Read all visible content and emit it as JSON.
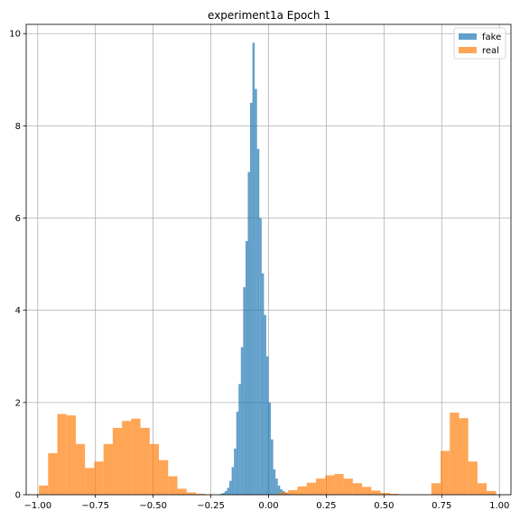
{
  "chart_data": {
    "type": "histogram",
    "title": "experiment1a Epoch 1",
    "xlabel": "",
    "ylabel": "",
    "xlim": [
      -1.05,
      1.05
    ],
    "ylim": [
      0,
      10.2
    ],
    "grid": true,
    "legend_position": "top-right",
    "xticks": [
      -1.0,
      -0.75,
      -0.5,
      -0.25,
      0.0,
      0.25,
      0.5,
      0.75,
      1.0
    ],
    "xtick_labels": [
      "−1.00",
      "−0.75",
      "−0.50",
      "−0.25",
      "0.00",
      "0.25",
      "0.50",
      "0.75",
      "1.00"
    ],
    "yticks": [
      0,
      2,
      4,
      6,
      8,
      10
    ],
    "ytick_labels": [
      "0",
      "2",
      "4",
      "6",
      "8",
      "10"
    ],
    "series": [
      {
        "name": "fake",
        "color": "#1f77b4",
        "alpha": 0.7,
        "bin_width": 0.01,
        "bins": [
          [
            -0.205,
            0.02
          ],
          [
            -0.195,
            0.04
          ],
          [
            -0.185,
            0.08
          ],
          [
            -0.175,
            0.15
          ],
          [
            -0.165,
            0.3
          ],
          [
            -0.155,
            0.6
          ],
          [
            -0.145,
            1.0
          ],
          [
            -0.135,
            1.8
          ],
          [
            -0.125,
            2.4
          ],
          [
            -0.115,
            3.2
          ],
          [
            -0.105,
            4.5
          ],
          [
            -0.095,
            5.5
          ],
          [
            -0.085,
            7.0
          ],
          [
            -0.075,
            8.5
          ],
          [
            -0.065,
            9.8
          ],
          [
            -0.055,
            8.8
          ],
          [
            -0.045,
            7.5
          ],
          [
            -0.035,
            6.0
          ],
          [
            -0.025,
            4.8
          ],
          [
            -0.015,
            3.9
          ],
          [
            -0.005,
            3.0
          ],
          [
            0.005,
            2.0
          ],
          [
            0.015,
            1.2
          ],
          [
            0.025,
            0.55
          ],
          [
            0.035,
            0.35
          ],
          [
            0.045,
            0.2
          ],
          [
            0.055,
            0.12
          ],
          [
            0.065,
            0.08
          ],
          [
            0.075,
            0.04
          ],
          [
            0.085,
            0.02
          ]
        ]
      },
      {
        "name": "real",
        "color": "#ff7f0e",
        "alpha": 0.7,
        "bin_width": 0.04,
        "bins": [
          [
            -0.975,
            0.2
          ],
          [
            -0.935,
            0.9
          ],
          [
            -0.895,
            1.75
          ],
          [
            -0.855,
            1.72
          ],
          [
            -0.815,
            1.1
          ],
          [
            -0.775,
            0.58
          ],
          [
            -0.735,
            0.72
          ],
          [
            -0.695,
            1.1
          ],
          [
            -0.655,
            1.45
          ],
          [
            -0.615,
            1.6
          ],
          [
            -0.575,
            1.65
          ],
          [
            -0.535,
            1.45
          ],
          [
            -0.495,
            1.1
          ],
          [
            -0.455,
            0.75
          ],
          [
            -0.415,
            0.4
          ],
          [
            -0.375,
            0.13
          ],
          [
            -0.335,
            0.05
          ],
          [
            -0.295,
            0.02
          ],
          [
            0.025,
            0.01
          ],
          [
            0.065,
            0.05
          ],
          [
            0.105,
            0.1
          ],
          [
            0.145,
            0.18
          ],
          [
            0.185,
            0.26
          ],
          [
            0.225,
            0.35
          ],
          [
            0.265,
            0.42
          ],
          [
            0.305,
            0.45
          ],
          [
            0.345,
            0.35
          ],
          [
            0.385,
            0.25
          ],
          [
            0.425,
            0.17
          ],
          [
            0.465,
            0.09
          ],
          [
            0.505,
            0.04
          ],
          [
            0.545,
            0.02
          ],
          [
            0.725,
            0.25
          ],
          [
            0.765,
            0.95
          ],
          [
            0.805,
            1.78
          ],
          [
            0.845,
            1.66
          ],
          [
            0.885,
            0.72
          ],
          [
            0.925,
            0.25
          ],
          [
            0.965,
            0.08
          ]
        ]
      }
    ]
  }
}
